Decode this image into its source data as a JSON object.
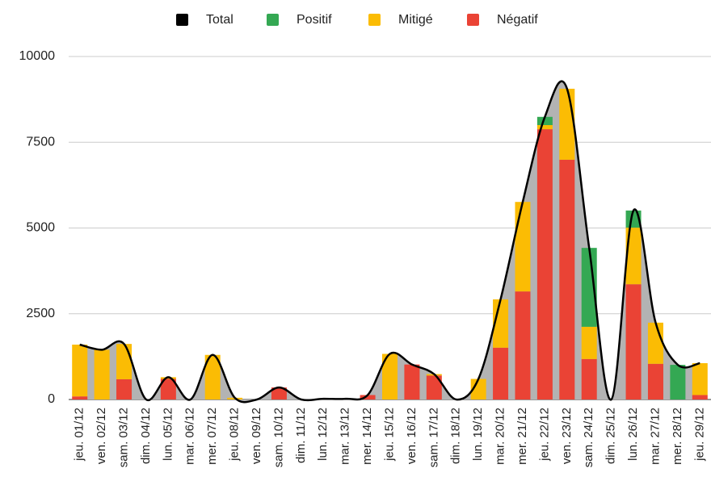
{
  "chart_data": {
    "type": "bar",
    "categories": [
      "jeu. 01/12",
      "ven. 02/12",
      "sam. 03/12",
      "dim. 04/12",
      "lun. 05/12",
      "mar. 06/12",
      "mer. 07/12",
      "jeu. 08/12",
      "ven. 09/12",
      "sam. 10/12",
      "dim. 11/12",
      "lun. 12/12",
      "mar. 13/12",
      "mer. 14/12",
      "jeu. 15/12",
      "ven. 16/12",
      "sam. 17/12",
      "dim. 18/12",
      "lun. 19/12",
      "mar. 20/12",
      "mer. 21/12",
      "jeu. 22/12",
      "ven. 23/12",
      "sam. 24/12",
      "dim. 25/12",
      "lun. 26/12",
      "mar. 27/12",
      "mer. 28/12",
      "jeu. 29/12"
    ],
    "series": [
      {
        "name": "Total",
        "type": "line",
        "color": "#000000",
        "area_color": "#b3b3b3",
        "values": [
          1600,
          1450,
          1620,
          0,
          650,
          0,
          1300,
          50,
          0,
          350,
          0,
          20,
          20,
          130,
          1330,
          1020,
          740,
          0,
          600,
          2920,
          5760,
          8240,
          9060,
          4420,
          0,
          5510,
          2240,
          1010,
          1060
        ]
      },
      {
        "name": "Positif",
        "color": "#34a853",
        "values": [
          0,
          0,
          0,
          0,
          0,
          0,
          0,
          0,
          0,
          0,
          0,
          0,
          0,
          0,
          0,
          0,
          0,
          0,
          0,
          0,
          0,
          240,
          0,
          2300,
          0,
          500,
          0,
          1010,
          0
        ]
      },
      {
        "name": "Mitigé",
        "color": "#fbbc04",
        "values": [
          1510,
          1450,
          1030,
          0,
          50,
          0,
          1300,
          50,
          0,
          0,
          0,
          0,
          0,
          0,
          1330,
          0,
          40,
          0,
          600,
          1410,
          2610,
          120,
          2070,
          940,
          0,
          1650,
          1200,
          0,
          930
        ]
      },
      {
        "name": "Négatif",
        "color": "#ea4335",
        "values": [
          90,
          0,
          590,
          0,
          600,
          0,
          0,
          0,
          0,
          350,
          0,
          20,
          20,
          130,
          0,
          1020,
          700,
          0,
          0,
          1510,
          3150,
          7880,
          6990,
          1180,
          0,
          3360,
          1040,
          0,
          130
        ]
      }
    ],
    "ylim": [
      0,
      10000
    ],
    "yticks": [
      0,
      2500,
      5000,
      7500,
      10000
    ],
    "grid": true,
    "legend": "top"
  }
}
